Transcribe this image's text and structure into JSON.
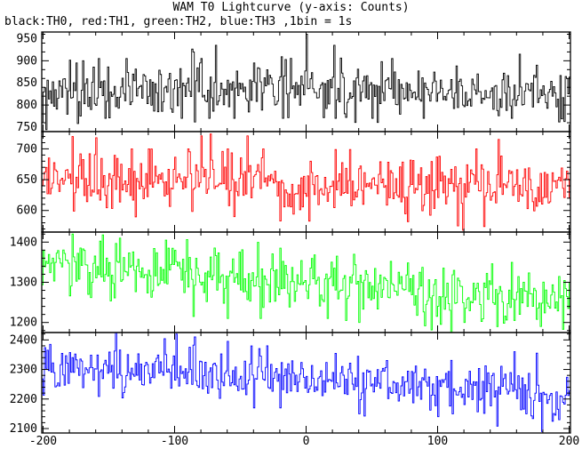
{
  "chart_data": {
    "type": "line",
    "title": "WAM T0 Lightcurve (y-axis: Counts)",
    "subtitle": "black:TH0, red:TH1, green:TH2, blue:TH3 ,1bin = 1s",
    "x_ticks": [
      -200,
      -100,
      0,
      100,
      200
    ],
    "xlim": [
      -201,
      201
    ],
    "x_step": 1,
    "panels": [
      {
        "name": "TH0",
        "color": "#000000",
        "ylim": [
          740,
          965
        ],
        "y_ticks": [
          750,
          800,
          850,
          900,
          950
        ],
        "baseline": [
          [
            -200,
            820
          ],
          [
            -100,
            835
          ],
          [
            0,
            842
          ],
          [
            100,
            832
          ],
          [
            200,
            820
          ]
        ],
        "noise": 30,
        "features": [
          [
            0,
            960
          ],
          [
            -201,
            760
          ],
          [
            -153,
            770
          ],
          [
            -137,
            770
          ],
          [
            -55,
            770
          ],
          [
            -95,
            770
          ],
          [
            22,
            770
          ],
          [
            -18,
            770
          ],
          [
            50,
            770
          ],
          [
            89,
            770
          ],
          [
            156,
            770
          ],
          [
            -74,
            770
          ],
          [
            -69,
            935
          ],
          [
            21,
            935
          ],
          [
            -86,
            920
          ],
          [
            162,
            915
          ],
          [
            -158,
            905
          ],
          [
            -137,
            905
          ],
          [
            -80,
            905
          ],
          [
            65,
            905
          ],
          [
            -170,
            900
          ],
          [
            175,
            890
          ],
          [
            -175,
            895
          ],
          [
            -40,
            895
          ]
        ]
      },
      {
        "name": "TH1",
        "color": "#ff0000",
        "ylim": [
          565,
          728
        ],
        "y_ticks": [
          600,
          650,
          700
        ],
        "baseline": [
          [
            -200,
            648
          ],
          [
            -100,
            652
          ],
          [
            0,
            648
          ],
          [
            100,
            640
          ],
          [
            200,
            638
          ]
        ],
        "noise": 23,
        "features": [
          [
            119,
            568
          ],
          [
            135,
            574
          ],
          [
            -55,
            590
          ],
          [
            -20,
            583
          ],
          [
            115,
            575
          ],
          [
            -80,
            721
          ],
          [
            -178,
            720
          ],
          [
            -160,
            718
          ],
          [
            -45,
            721
          ],
          [
            -133,
            700
          ],
          [
            -120,
            700
          ],
          [
            -90,
            700
          ],
          [
            -60,
            700
          ],
          [
            -33,
            700
          ],
          [
            129,
            700
          ]
        ]
      },
      {
        "name": "TH2",
        "color": "#00ff00",
        "ylim": [
          1175,
          1425
        ],
        "y_ticks": [
          1200,
          1300,
          1400
        ],
        "baseline": [
          [
            -200,
            1345
          ],
          [
            -150,
            1330
          ],
          [
            -100,
            1320
          ],
          [
            0,
            1300
          ],
          [
            100,
            1275
          ],
          [
            200,
            1255
          ]
        ],
        "noise": 34,
        "features": [
          [
            -178,
            1420
          ],
          [
            -155,
            1418
          ],
          [
            -142,
            1410
          ],
          [
            -107,
            1405
          ],
          [
            -60,
            1390
          ],
          [
            -20,
            1385
          ],
          [
            -86,
            1215
          ],
          [
            -60,
            1210
          ],
          [
            -35,
            1210
          ],
          [
            16,
            1210
          ],
          [
            30,
            1205
          ],
          [
            40,
            1200
          ],
          [
            120,
            1200
          ],
          [
            150,
            1198
          ],
          [
            195,
            1183
          ],
          [
            178,
            1190
          ]
        ]
      },
      {
        "name": "TH3",
        "color": "#0000ff",
        "ylim": [
          2085,
          2425
        ],
        "y_ticks": [
          2100,
          2200,
          2300,
          2400
        ],
        "baseline": [
          [
            -200,
            2320
          ],
          [
            -100,
            2295
          ],
          [
            0,
            2270
          ],
          [
            100,
            2245
          ],
          [
            200,
            2215
          ]
        ],
        "noise": 40,
        "features": [
          [
            -145,
            2425
          ],
          [
            -99,
            2420
          ],
          [
            -85,
            2410
          ],
          [
            -60,
            2395
          ],
          [
            -30,
            2380
          ],
          [
            158,
            2360
          ],
          [
            175,
            2355
          ],
          [
            -195,
            2385
          ],
          [
            179,
            2090
          ],
          [
            145,
            2108
          ],
          [
            -40,
            2170
          ],
          [
            -20,
            2170
          ],
          [
            40,
            2150
          ],
          [
            100,
            2140
          ],
          [
            167,
            2150
          ],
          [
            192,
            2130
          ],
          [
            111,
            2150
          ]
        ]
      }
    ]
  }
}
